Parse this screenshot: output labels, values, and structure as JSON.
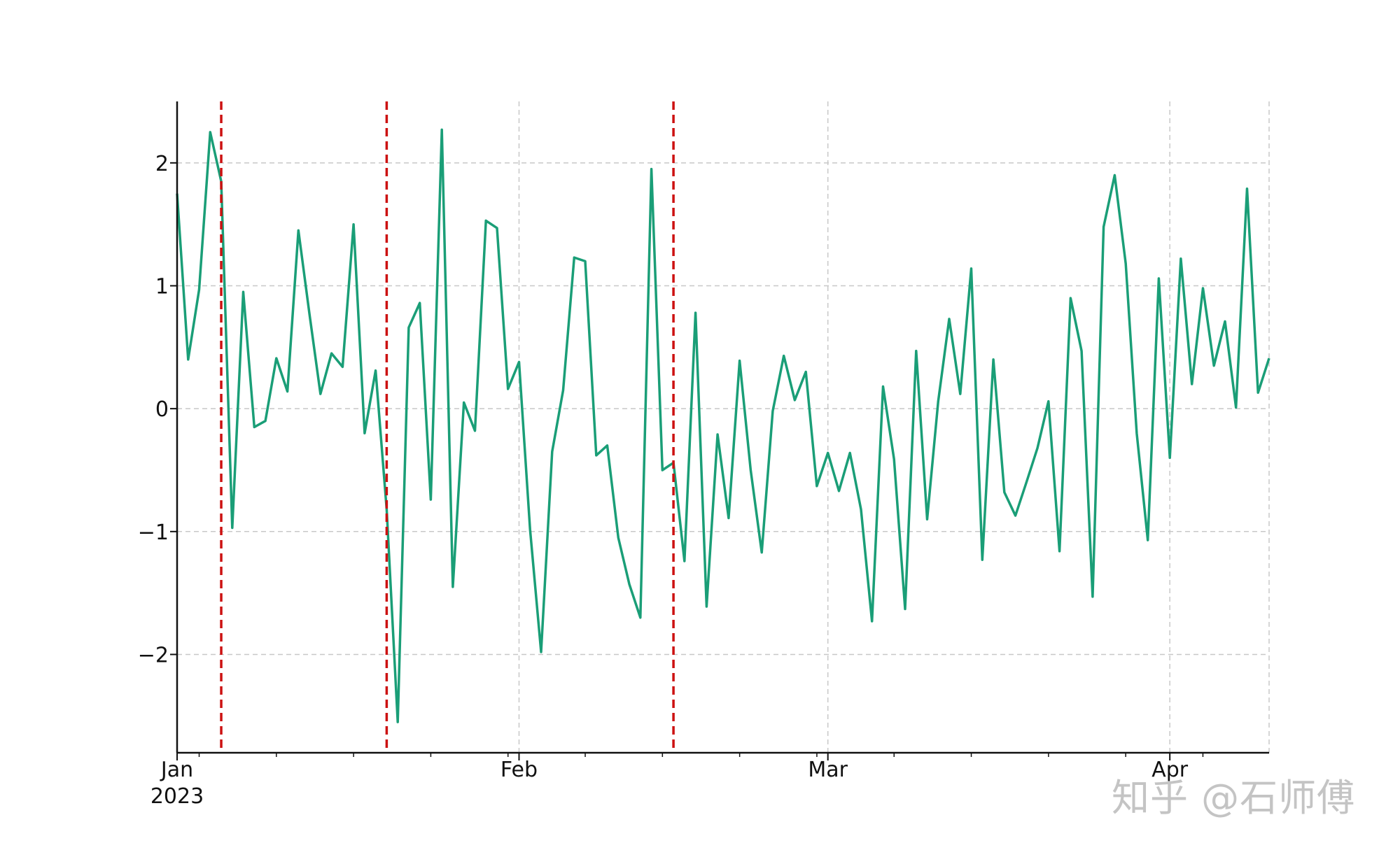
{
  "chart_data": {
    "type": "line",
    "title": "",
    "xlabel": "",
    "ylabel": "",
    "x_start": "2023-01-01",
    "x_end": "2023-04-10",
    "x_unit": "day",
    "x_ticks": [
      {
        "date": "2023-01-01",
        "label": "Jan",
        "sublabel": "2023"
      },
      {
        "date": "2023-02-01",
        "label": "Feb",
        "sublabel": ""
      },
      {
        "date": "2023-03-01",
        "label": "Mar",
        "sublabel": ""
      },
      {
        "date": "2023-04-01",
        "label": "Apr",
        "sublabel": ""
      }
    ],
    "y_ticks": [
      -2,
      -1,
      0,
      1,
      2
    ],
    "y_tick_labels": [
      "−2",
      "−1",
      "0",
      "1",
      "2"
    ],
    "ylim": [
      -2.8,
      2.5
    ],
    "grid": true,
    "series": [
      {
        "color": "#1a9e77",
        "values": [
          1.75,
          0.4,
          0.97,
          2.25,
          1.85,
          -0.97,
          0.95,
          -0.15,
          -0.1,
          0.41,
          0.14,
          1.45,
          0.77,
          0.12,
          0.45,
          0.34,
          1.5,
          -0.2,
          0.31,
          -0.82,
          -2.55,
          0.66,
          0.86,
          -0.74,
          2.27,
          -1.45,
          0.05,
          -0.18,
          1.53,
          1.47,
          0.16,
          0.38,
          -0.98,
          -1.98,
          -0.35,
          0.15,
          1.23,
          1.2,
          -0.38,
          -0.3,
          -1.05,
          -1.43,
          -1.7,
          1.95,
          -0.5,
          -0.44,
          -1.24,
          0.78,
          -1.61,
          -0.21,
          -0.89,
          0.39,
          -0.5,
          -1.17,
          -0.02,
          0.43,
          0.07,
          0.3,
          -0.63,
          -0.36,
          -0.67,
          -0.36,
          -0.82,
          -1.73,
          0.18,
          -0.41,
          -1.63,
          0.47,
          -0.9,
          0.06,
          0.73,
          0.12,
          1.14,
          -1.23,
          0.4,
          -0.68,
          -0.87,
          -0.6,
          -0.32,
          0.06,
          -1.16,
          0.9,
          0.47,
          -1.53,
          1.48,
          1.9,
          1.18,
          -0.2,
          -1.07,
          1.06,
          -0.4,
          1.22,
          0.2,
          0.98,
          0.35,
          0.71,
          0.01,
          1.79,
          0.13,
          0.41
        ]
      }
    ],
    "vlines": [
      {
        "date": "2023-01-05",
        "color": "#cc1111",
        "style": "dashed"
      },
      {
        "date": "2023-01-20",
        "color": "#cc1111",
        "style": "dashed"
      },
      {
        "date": "2023-02-15",
        "color": "#cc1111",
        "style": "dashed"
      }
    ]
  },
  "watermark": "知乎 @石师傅"
}
